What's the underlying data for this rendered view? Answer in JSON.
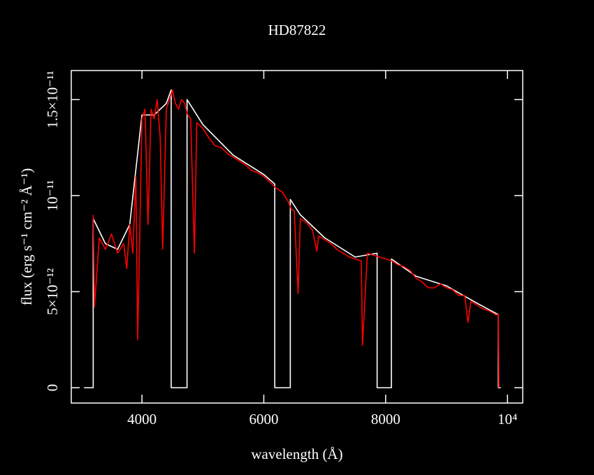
{
  "chart_data": {
    "type": "line",
    "title": "HD87822",
    "xlabel": "wavelength (Å)",
    "ylabel": "flux (erg s⁻¹ cm⁻² Å⁻¹)",
    "xlim": [
      2840,
      10250
    ],
    "ylim": [
      -8e-13,
      1.651e-11
    ],
    "xticks": [
      4000,
      6000,
      8000,
      {
        "value": 10000,
        "label": "10⁴"
      }
    ],
    "yticks": [
      0,
      {
        "value": 5e-12,
        "label": "5×10⁻¹²"
      },
      {
        "value": 1e-11,
        "label": "10⁻¹¹"
      },
      {
        "value": 1.5e-11,
        "label": "1.5×10⁻¹¹"
      }
    ],
    "grid": false,
    "series": [
      {
        "color": "#ffffff",
        "x": [
          3050,
          3200,
          3200,
          3400,
          3600,
          3800,
          4000,
          4200,
          4400,
          4480,
          4480,
          4740,
          4740,
          5000,
          5500,
          6000,
          6180,
          6180,
          6435,
          6435,
          6600,
          7000,
          7500,
          7860,
          7860,
          8095,
          8095,
          8500,
          9000,
          9500,
          9850,
          9850,
          9890
        ],
        "values": [
          0,
          0,
          8.8e-12,
          7.5e-12,
          7.2e-12,
          8.5e-12,
          1.42e-11,
          1.42e-11,
          1.48e-11,
          1.55e-11,
          0,
          0,
          1.5e-11,
          1.37e-11,
          1.21e-11,
          1.11e-11,
          1.06e-11,
          0,
          0,
          9.8e-12,
          9e-12,
          7.8e-12,
          6.8e-12,
          7e-12,
          0,
          0,
          6.7e-12,
          5.8e-12,
          5.3e-12,
          4.4e-12,
          3.8e-12,
          0,
          0
        ]
      },
      {
        "color": "#ff0000",
        "x": [
          3200,
          3220,
          3300,
          3400,
          3500,
          3600,
          3700,
          3750,
          3800,
          3850,
          3900,
          3930,
          3970,
          4000,
          4050,
          4100,
          4150,
          4200,
          4250,
          4300,
          4340,
          4400,
          4450,
          4500,
          4550,
          4600,
          4650,
          4700,
          4750,
          4800,
          4861,
          4900,
          5000,
          5100,
          5200,
          5300,
          5400,
          5500,
          5600,
          5700,
          5800,
          5900,
          6000,
          6100,
          6200,
          6300,
          6400,
          6450,
          6500,
          6563,
          6600,
          6700,
          6800,
          6870,
          6900,
          7000,
          7100,
          7200,
          7300,
          7400,
          7500,
          7600,
          7620,
          7700,
          7800,
          7900,
          8000,
          8100,
          8200,
          8300,
          8400,
          8500,
          8600,
          8700,
          8800,
          8900,
          9000,
          9100,
          9200,
          9300,
          9350,
          9400,
          9500,
          9600,
          9700,
          9800,
          9850,
          9860
        ],
        "values": [
          9e-12,
          4.2e-12,
          7.8e-12,
          7.2e-12,
          8e-12,
          7e-12,
          7.5e-12,
          6.2e-12,
          8.5e-12,
          7e-12,
          1.1e-11,
          2.5e-12,
          9e-12,
          1.4e-11,
          1.45e-11,
          8.5e-12,
          1.45e-11,
          1.4e-11,
          1.5e-11,
          1.3e-11,
          7.2e-12,
          1.45e-11,
          1.5e-11,
          1.55e-11,
          1.48e-11,
          1.45e-11,
          1.5e-11,
          1.48e-11,
          1.42e-11,
          1.4e-11,
          7e-12,
          1.38e-11,
          1.35e-11,
          1.3e-11,
          1.26e-11,
          1.25e-11,
          1.22e-11,
          1.2e-11,
          1.18e-11,
          1.16e-11,
          1.13e-11,
          1.12e-11,
          1.1e-11,
          1.07e-11,
          1.04e-11,
          1.02e-11,
          9.7e-12,
          9.3e-12,
          9.2e-12,
          4.9e-12,
          8.8e-12,
          8.6e-12,
          8.2e-12,
          7.1e-12,
          7.9e-12,
          7.7e-12,
          7.5e-12,
          7.2e-12,
          7e-12,
          6.8e-12,
          6.7e-12,
          6.6e-12,
          2.2e-12,
          7e-12,
          6.9e-12,
          6.8e-12,
          6.7e-12,
          6.6e-12,
          6.4e-12,
          6.3e-12,
          6.1e-12,
          5.7e-12,
          5.5e-12,
          5.2e-12,
          5.2e-12,
          5.4e-12,
          5.2e-12,
          5.1e-12,
          4.8e-12,
          4.8e-12,
          3.4e-12,
          4.5e-12,
          4.3e-12,
          4.1e-12,
          4e-12,
          3.8e-12,
          3.8e-12,
          0
        ]
      }
    ]
  }
}
